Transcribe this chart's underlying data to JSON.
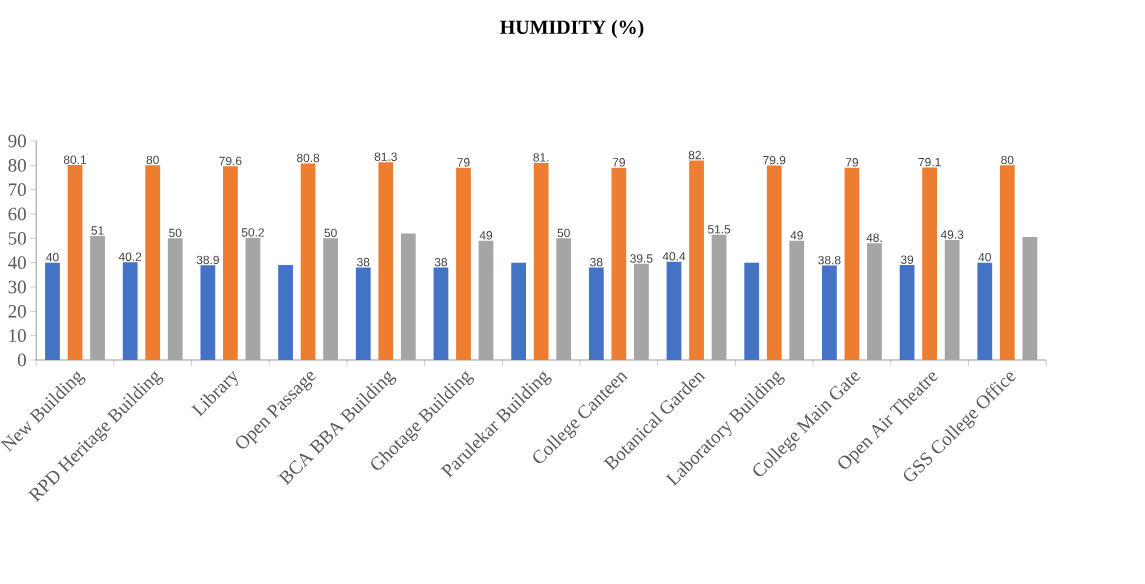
{
  "chart_data": {
    "type": "bar",
    "title": "HUMIDITY (%)",
    "categories": [
      "New Building",
      "RPD Heritage Building",
      "Library",
      "Open Passage",
      "BCA BBA Building",
      "Ghotage Building",
      "Parulekar Building",
      "College Canteen",
      "Botanical Garden",
      "Laboratory Building",
      "College Main Gate",
      "Open Air Theatre",
      "GSS College Office"
    ],
    "series": [
      {
        "color": "#4472c4",
        "values": [
          40,
          40.2,
          38.9,
          39,
          38,
          38,
          40,
          38,
          40.4,
          40,
          38.8,
          39,
          40
        ],
        "value_labels": [
          "40",
          "40.2",
          "38.9",
          null,
          "38",
          "38",
          null,
          "38",
          "40.4",
          null,
          "38.8",
          "39",
          "40"
        ]
      },
      {
        "color": "#ed7d31",
        "values": [
          80.1,
          80,
          79.6,
          80.8,
          81.3,
          79,
          81,
          79,
          82,
          79.9,
          79,
          79.1,
          80
        ],
        "value_labels": [
          "80.1",
          "80",
          "79.6",
          "80.8",
          "81.3",
          "79",
          "81.",
          "79",
          "82.",
          "79.9",
          "79",
          "79.1",
          "80"
        ]
      },
      {
        "color": "#a5a5a5",
        "values": [
          51,
          50,
          50.2,
          50,
          52,
          49,
          50,
          39.5,
          51.5,
          49,
          48,
          49.3,
          50.5
        ],
        "value_labels": [
          "51",
          "50",
          "50.2",
          "50",
          null,
          "49",
          "50",
          "39.5",
          "51.5",
          "49",
          "48.",
          "49.3",
          null
        ]
      }
    ],
    "ylim": [
      0,
      90
    ],
    "yticks": [
      0,
      10,
      20,
      30,
      40,
      50,
      60,
      70,
      80,
      90
    ]
  }
}
